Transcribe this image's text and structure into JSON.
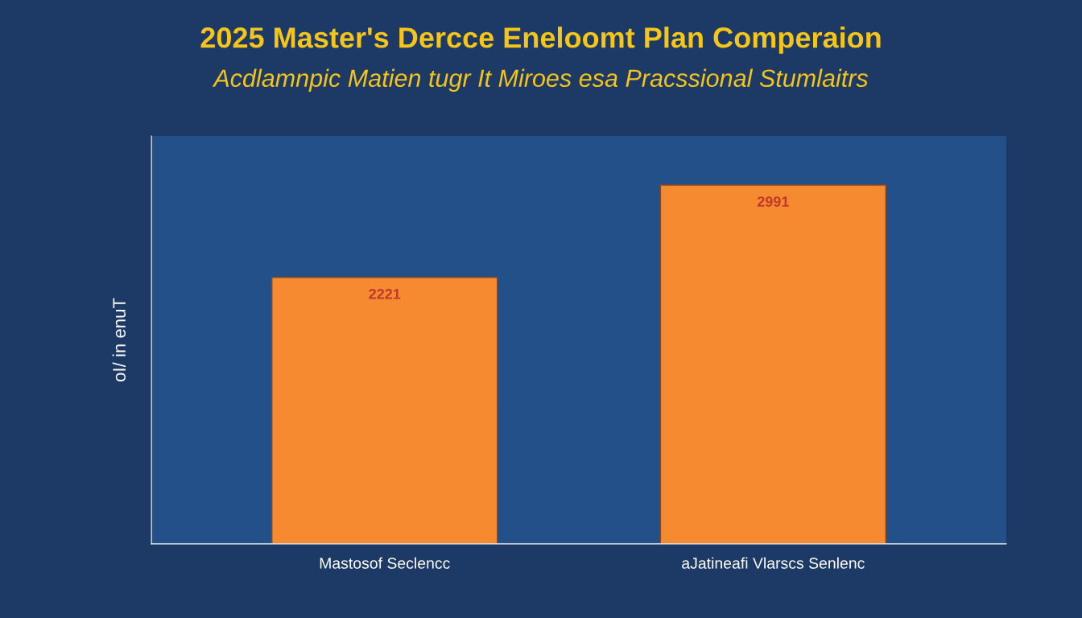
{
  "chart_data": {
    "type": "bar",
    "title": "2025 Master's Dercce Eneloomt Plan Comperaion",
    "subtitle": "Acdlamnpic Matien tugr It Miroes esa Pracssional Stumlaitrs",
    "ylabel": "oI/ in enuT",
    "categories": [
      "Mastosof Seclencc",
      "aJatineafi Vlarscs Senlenc"
    ],
    "ylim": [
      0,
      3400
    ],
    "data_labels": true,
    "series": [
      {
        "color": "#f58a30",
        "values": [
          2221,
          2991
        ]
      }
    ]
  }
}
